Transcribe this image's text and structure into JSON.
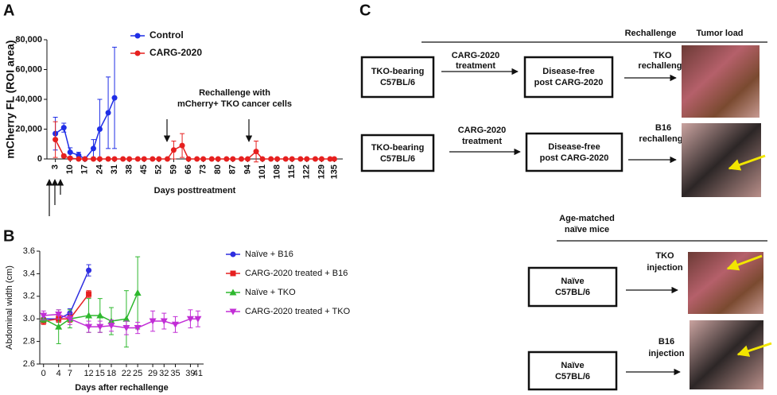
{
  "panels": {
    "a": "A",
    "b": "B",
    "c": "C"
  },
  "chart_data": [
    {
      "type": "line",
      "y_label": "mCherry FL (ROI area)",
      "x_label": "Days posttreatment",
      "annotation": [
        "Rechallenge with",
        "mCherry+ TKO cancer cells"
      ],
      "xlim": [
        -1,
        139
      ],
      "ylim": [
        0,
        80000
      ],
      "xticks": [
        3,
        10,
        17,
        24,
        31,
        38,
        45,
        52,
        59,
        66,
        73,
        80,
        87,
        94,
        101,
        108,
        115,
        122,
        129,
        135
      ],
      "yticks": [
        0,
        {
          "value": 20000,
          "label": "20,000"
        },
        {
          "value": 40000,
          "label": "40,000"
        },
        {
          "value": 60000,
          "label": "60,000"
        },
        {
          "value": 80000,
          "label": "80,000"
        }
      ],
      "series": [
        {
          "name": "Control",
          "color": "#1f2ee6",
          "marker": "circle",
          "x": [
            3,
            7,
            10,
            14,
            17,
            21,
            24,
            28,
            31
          ],
          "values": [
            17000,
            21000,
            4500,
            2500,
            0,
            7000,
            20000,
            31000,
            41000
          ],
          "errors": [
            11000,
            3000,
            3000,
            2000,
            0,
            6000,
            20000,
            24000,
            34000
          ]
        },
        {
          "name": "CARG-2020",
          "color": "#e6201f",
          "marker": "circle",
          "x": [
            3,
            7,
            10,
            14,
            17,
            21,
            24,
            28,
            31,
            35,
            38,
            42,
            45,
            49,
            52,
            56,
            59,
            63,
            66,
            70,
            73,
            77,
            80,
            84,
            87,
            91,
            94,
            98,
            101,
            105,
            108,
            112,
            115,
            119,
            122,
            126,
            129,
            133,
            135
          ],
          "values": [
            13000,
            2000,
            500,
            0,
            0,
            0,
            0,
            0,
            0,
            0,
            0,
            0,
            0,
            0,
            0,
            0,
            6000,
            9000,
            0,
            0,
            0,
            0,
            0,
            0,
            0,
            0,
            0,
            5000,
            0,
            0,
            0,
            0,
            0,
            0,
            0,
            0,
            0,
            0,
            0
          ],
          "errors": [
            12000,
            1000,
            0,
            0,
            0,
            0,
            0,
            0,
            0,
            0,
            0,
            0,
            0,
            0,
            0,
            0,
            6000,
            8000,
            0,
            0,
            0,
            0,
            0,
            0,
            0,
            0,
            0,
            7000,
            0,
            0,
            0,
            0,
            0,
            0,
            0,
            0,
            0,
            0,
            0
          ]
        }
      ]
    },
    {
      "type": "line",
      "y_label": "Abdominal width (cm)",
      "x_label": "Days after rechallenge",
      "xlim": [
        -1,
        42.5
      ],
      "ylim": [
        2.6,
        3.6
      ],
      "xticks": [
        0,
        4,
        7,
        12,
        15,
        18,
        22,
        25,
        29,
        32,
        35,
        39,
        41
      ],
      "yticks": [
        2.6,
        2.8,
        {
          "value": 3,
          "label": "3.0"
        },
        3.2,
        3.4,
        3.6
      ],
      "series": [
        {
          "name": "Naïve + B16",
          "color": "#2e2ee0",
          "marker": "circle",
          "x": [
            0,
            4,
            7,
            12
          ],
          "values": [
            3.0,
            3.0,
            3.05,
            3.43
          ],
          "errors": [
            0.04,
            0.03,
            0.04,
            0.05
          ]
        },
        {
          "name": "CARG-2020 treated + B16",
          "color": "#e62020",
          "marker": "square",
          "x": [
            0,
            4,
            7,
            12
          ],
          "values": [
            2.98,
            3.0,
            3.0,
            3.22
          ],
          "errors": [
            0.03,
            0.03,
            0.03,
            0.03
          ]
        },
        {
          "name": "Naïve + TKO",
          "color": "#2eb82e",
          "marker": "triangle",
          "x": [
            0,
            4,
            7,
            12,
            15,
            18,
            22,
            25
          ],
          "values": [
            3.0,
            2.93,
            3.0,
            3.03,
            3.03,
            2.98,
            3.0,
            3.23
          ],
          "errors": [
            0.03,
            0.15,
            0.08,
            0.15,
            0.15,
            0.12,
            0.25,
            0.32
          ]
        },
        {
          "name": "CARG-2020 treated + TKO",
          "color": "#c22ed6",
          "marker": "triangle-down",
          "x": [
            0,
            4,
            7,
            12,
            15,
            18,
            22,
            25,
            29,
            32,
            35,
            39,
            41
          ],
          "values": [
            3.03,
            3.04,
            3.0,
            2.93,
            2.93,
            2.94,
            2.92,
            2.92,
            2.98,
            2.98,
            2.95,
            3.0,
            3.0
          ],
          "errors": [
            0.04,
            0.04,
            0.05,
            0.05,
            0.05,
            0.05,
            0.06,
            0.05,
            0.09,
            0.07,
            0.07,
            0.08,
            0.07
          ]
        }
      ]
    }
  ],
  "diagram": {
    "rechallenge": "Rechallenge",
    "tumor_load": "Tumor load",
    "rows": [
      {
        "start": [
          "TKO-bearing",
          "C57BL/6"
        ],
        "step": [
          "CARG-2020",
          "treatment"
        ],
        "mid": [
          "Disease-free",
          "post CARG-2020"
        ],
        "end": [
          "TKO",
          "rechallenge"
        ]
      },
      {
        "start": [
          "TKO-bearing",
          "C57BL/6"
        ],
        "step": [
          "CARG-2020",
          "treatment"
        ],
        "mid": [
          "Disease-free",
          "post CARG-2020"
        ],
        "end": [
          "B16",
          "rechallenge"
        ]
      }
    ],
    "naive_header": [
      "Age-matched",
      "naïve mice"
    ],
    "naive_rows": [
      {
        "start": [
          "Naïve",
          "C57BL/6"
        ],
        "end": [
          "TKO",
          "injection"
        ]
      },
      {
        "start": [
          "Naïve",
          "C57BL/6"
        ],
        "end": [
          "B16",
          "injection"
        ]
      }
    ]
  }
}
